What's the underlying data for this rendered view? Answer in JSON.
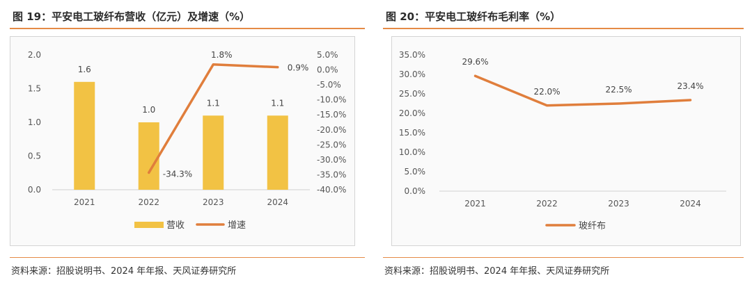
{
  "left": {
    "title": "图 19：平安电工玻纤布营收（亿元）及增速（%）",
    "source": "资料来源：招股说明书、2024 年年报、天风证券研究所"
  },
  "right": {
    "title": "图 20：平安电工玻纤布毛利率（%）",
    "source": "资料来源：招股说明书、2024 年年报、天风证券研究所"
  },
  "colors": {
    "bar": "#f2c244",
    "line": "#e07e3c",
    "rule": "#e58a46"
  },
  "chart_data": [
    {
      "type": "bar",
      "categories": [
        "2021",
        "2022",
        "2023",
        "2024"
      ],
      "series": [
        {
          "name": "营收",
          "type": "bar",
          "axis": "left",
          "values": [
            1.6,
            1.0,
            1.1,
            1.1
          ],
          "labels": [
            "1.6",
            "1.0",
            "1.1",
            "1.1"
          ]
        },
        {
          "name": "增速",
          "type": "line",
          "axis": "right",
          "values": [
            null,
            -34.3,
            1.8,
            0.9
          ],
          "labels": [
            "",
            "-34.3%",
            "1.8%",
            "0.9%"
          ]
        }
      ],
      "ylim": [
        0,
        2.0
      ],
      "yticks": [
        "0.0",
        "0.5",
        "1.0",
        "1.5",
        "2.0"
      ],
      "ylim_right": [
        -40,
        5
      ],
      "yticks_right": [
        "-40.0%",
        "-35.0%",
        "-30.0%",
        "-25.0%",
        "-20.0%",
        "-15.0%",
        "-10.0%",
        "-5.0%",
        "0.0%",
        "5.0%"
      ],
      "legend": "bottom",
      "grid": false
    },
    {
      "type": "line",
      "categories": [
        "2021",
        "2022",
        "2023",
        "2024"
      ],
      "series": [
        {
          "name": "玻纤布",
          "values": [
            29.6,
            22.0,
            22.5,
            23.4
          ],
          "labels": [
            "29.6%",
            "22.0%",
            "22.5%",
            "23.4%"
          ]
        }
      ],
      "ylim": [
        0,
        35
      ],
      "yticks": [
        "0.0%",
        "5.0%",
        "10.0%",
        "15.0%",
        "20.0%",
        "25.0%",
        "30.0%",
        "35.0%"
      ],
      "legend": "bottom",
      "grid": false
    }
  ]
}
